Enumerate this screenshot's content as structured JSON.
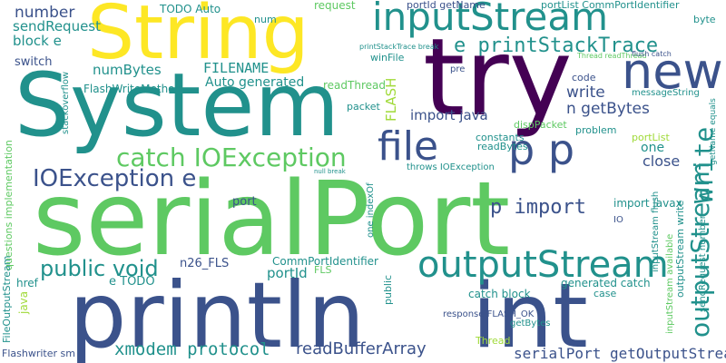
{
  "palette": {
    "background": "#ffffff",
    "yellow": "#fde725",
    "green": "#5ec962",
    "lime": "#a0da39",
    "teal": "#21918c",
    "blue": "#3b528b",
    "purple": "#440154",
    "cyan": "#2a788e"
  },
  "words": [
    {
      "t": "serialPort"
    },
    {
      "t": "System"
    },
    {
      "t": "println"
    },
    {
      "t": "String"
    },
    {
      "t": "try"
    },
    {
      "t": "int"
    },
    {
      "t": "inputStream"
    },
    {
      "t": "new"
    },
    {
      "t": "file"
    },
    {
      "t": "p p"
    },
    {
      "t": "outputStream"
    },
    {
      "t": "catch IOException"
    },
    {
      "t": "IOException e"
    },
    {
      "t": "Write"
    },
    {
      "t": "public void"
    },
    {
      "t": "outputStream"
    },
    {
      "t": "e printStackTrace"
    },
    {
      "t": "p import"
    },
    {
      "t": "readBufferArray"
    },
    {
      "t": "xmodem protocol"
    },
    {
      "t": "serialPort getOutputStream"
    },
    {
      "t": "number"
    },
    {
      "t": "sendRequest"
    },
    {
      "t": "block e"
    },
    {
      "t": "switch"
    },
    {
      "t": "numBytes"
    },
    {
      "t": "FILENAME"
    },
    {
      "t": "FlashWriteMethod"
    },
    {
      "t": "Auto generated"
    },
    {
      "t": "FLASH"
    },
    {
      "t": "readThread"
    },
    {
      "t": "write"
    },
    {
      "t": "n getBytes"
    },
    {
      "t": "import java"
    },
    {
      "t": "close"
    },
    {
      "t": "one"
    },
    {
      "t": "TODO Auto"
    },
    {
      "t": "num"
    },
    {
      "t": "request"
    },
    {
      "t": "portId getName"
    },
    {
      "t": "portList CommPortIdentifier"
    },
    {
      "t": "byte"
    },
    {
      "t": "winFile"
    },
    {
      "t": "packet"
    },
    {
      "t": "code"
    },
    {
      "t": "messageString"
    },
    {
      "t": "constants"
    },
    {
      "t": "readBytes"
    },
    {
      "t": "problem"
    },
    {
      "t": "dispPacket"
    },
    {
      "t": "portList"
    },
    {
      "t": "throws IOException"
    },
    {
      "t": "import javax"
    },
    {
      "t": "port"
    },
    {
      "t": "portId"
    },
    {
      "t": "CommPortIdentifier"
    },
    {
      "t": "n26_FLS"
    },
    {
      "t": "e TODO"
    },
    {
      "t": "FLS"
    },
    {
      "t": "generated catch"
    },
    {
      "t": "catch block"
    },
    {
      "t": "response FLASH_OK"
    },
    {
      "t": "getBytes"
    },
    {
      "t": "Thread"
    },
    {
      "t": "case"
    },
    {
      "t": "href"
    },
    {
      "t": "java"
    },
    {
      "t": "Flashwriter sm"
    },
    {
      "t": "stackoverflow"
    },
    {
      "t": "questions implementation"
    },
    {
      "t": "FileOutputStream"
    },
    {
      "t": "inputStream flush"
    },
    {
      "t": "outputStream write"
    },
    {
      "t": "inputStream available"
    },
    {
      "t": "sendRequest number"
    },
    {
      "t": "getName equals"
    },
    {
      "t": "one indexOf"
    },
    {
      "t": "public"
    },
    {
      "t": "printStackTrace break"
    },
    {
      "t": "Thread readThread"
    },
    {
      "t": "pre"
    },
    {
      "t": "null break"
    },
    {
      "t": "flush catch"
    },
    {
      "t": "IO"
    }
  ]
}
